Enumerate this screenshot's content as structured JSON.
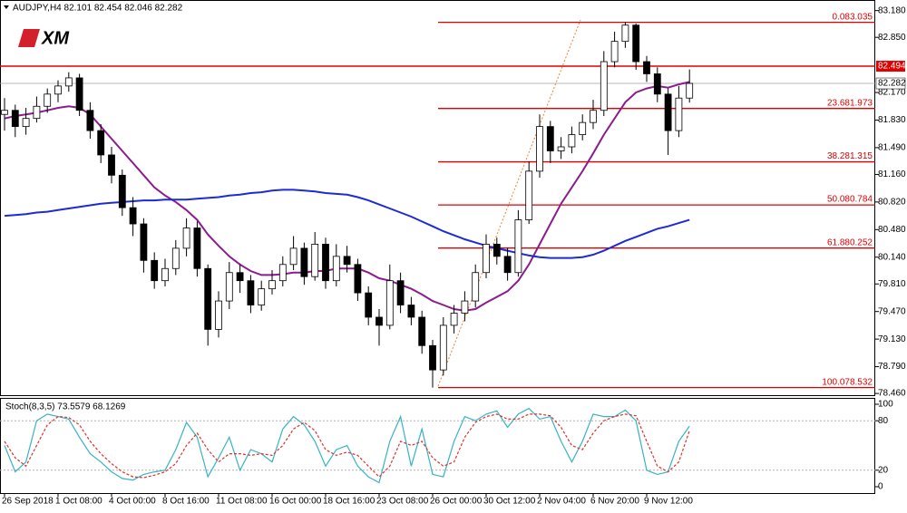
{
  "chart_data": [
    {
      "type": "candlestick",
      "title": "AUDJPY,H4 82.101 82.454 82.046 82.282",
      "logo": "XM",
      "categories": [
        "26 Sep 2018",
        null,
        null,
        null,
        null,
        "1 Oct 08:00",
        null,
        null,
        null,
        null,
        "4 Oct 00:00",
        null,
        null,
        null,
        null,
        "8 Oct 16:00",
        null,
        null,
        null,
        null,
        "11 Oct 08:00",
        null,
        null,
        null,
        null,
        "16 Oct 00:00",
        null,
        null,
        null,
        null,
        "18 Oct 16:00",
        null,
        null,
        null,
        null,
        "23 Oct 08:00",
        null,
        null,
        null,
        null,
        "26 Oct 00:00",
        null,
        null,
        null,
        null,
        "30 Oct 12:00",
        null,
        null,
        null,
        null,
        "2 Nov 04:00",
        null,
        null,
        null,
        null,
        "6 Nov 20:00",
        null,
        null,
        null,
        null,
        "9 Nov 12:00",
        null,
        null,
        null,
        null
      ],
      "open": [
        81.9,
        81.95,
        81.75,
        81.85,
        82.0,
        82.15,
        82.25,
        82.35,
        81.95,
        81.7,
        81.4,
        81.15,
        80.75,
        80.55,
        80.1,
        79.85,
        80.0,
        80.25,
        80.5,
        80.0,
        79.25,
        79.6,
        79.95,
        79.85,
        79.55,
        79.75,
        79.85,
        80.05,
        80.25,
        79.9,
        80.3,
        79.85,
        80.15,
        80.05,
        79.7,
        79.4,
        79.3,
        79.85,
        79.55,
        79.4,
        79.05,
        78.75,
        79.3,
        79.45,
        79.6,
        79.95,
        80.3,
        80.15,
        79.95,
        80.6,
        81.2,
        81.75,
        81.45,
        81.5,
        81.65,
        81.8,
        81.95,
        82.55,
        82.8,
        83.0,
        82.55,
        82.4,
        82.15,
        81.7,
        82.101
      ],
      "high": [
        82.1,
        82.02,
        81.98,
        82.12,
        82.22,
        82.32,
        82.42,
        82.4,
        82.05,
        81.78,
        81.5,
        81.22,
        80.88,
        80.62,
        80.2,
        80.12,
        80.35,
        80.62,
        80.58,
        80.05,
        79.72,
        80.08,
        80.05,
        79.92,
        79.85,
        79.98,
        80.15,
        80.4,
        80.32,
        80.45,
        80.38,
        80.3,
        80.28,
        80.12,
        79.78,
        79.5,
        80.05,
        79.95,
        79.65,
        79.48,
        79.12,
        79.4,
        79.55,
        79.72,
        80.05,
        80.42,
        80.38,
        80.25,
        80.72,
        81.32,
        81.9,
        81.82,
        81.62,
        81.75,
        81.9,
        82.08,
        82.68,
        82.92,
        83.035,
        83.02,
        82.62,
        82.48,
        82.22,
        82.25,
        82.454
      ],
      "low": [
        81.7,
        81.62,
        81.65,
        81.8,
        81.92,
        82.05,
        82.18,
        81.88,
        81.6,
        81.3,
        81.05,
        80.65,
        80.4,
        79.95,
        79.75,
        79.78,
        79.92,
        80.15,
        79.9,
        79.05,
        79.15,
        79.5,
        79.7,
        79.45,
        79.48,
        79.68,
        79.78,
        79.98,
        79.8,
        79.85,
        79.75,
        79.78,
        79.95,
        79.6,
        79.3,
        79.05,
        79.25,
        79.45,
        79.3,
        78.95,
        78.532,
        78.68,
        79.2,
        79.35,
        79.52,
        79.88,
        80.05,
        79.85,
        79.9,
        80.55,
        81.12,
        81.3,
        81.35,
        81.42,
        81.58,
        81.72,
        81.88,
        82.48,
        82.72,
        82.45,
        82.3,
        82.05,
        81.4,
        81.62,
        82.046
      ],
      "close": [
        81.95,
        81.75,
        81.85,
        82.0,
        82.15,
        82.25,
        82.35,
        81.95,
        81.7,
        81.4,
        81.15,
        80.75,
        80.55,
        80.1,
        79.85,
        80.0,
        80.25,
        80.5,
        80.0,
        79.25,
        79.6,
        79.95,
        79.85,
        79.55,
        79.75,
        79.85,
        80.05,
        80.25,
        79.9,
        80.3,
        79.85,
        80.15,
        80.05,
        79.7,
        79.4,
        79.3,
        79.85,
        79.55,
        79.4,
        79.05,
        78.75,
        79.3,
        79.45,
        79.6,
        79.95,
        80.3,
        80.15,
        79.95,
        80.6,
        81.2,
        81.75,
        81.45,
        81.5,
        81.65,
        81.8,
        81.95,
        82.55,
        82.8,
        83.0,
        82.55,
        82.4,
        82.15,
        81.7,
        82.101,
        82.282
      ],
      "up_color": "#ffffff",
      "down_color": "#000000",
      "series": [
        {
          "color": "#8e1b8e",
          "values": [
            81.85,
            81.88,
            81.9,
            81.92,
            81.95,
            81.98,
            82.0,
            81.98,
            81.9,
            81.75,
            81.6,
            81.45,
            81.3,
            81.15,
            81.0,
            80.9,
            80.82,
            80.72,
            80.6,
            80.42,
            80.28,
            80.15,
            80.05,
            79.97,
            79.92,
            79.92,
            79.93,
            79.95,
            79.95,
            79.97,
            79.97,
            80.0,
            80.0,
            80.0,
            79.95,
            79.88,
            79.85,
            79.8,
            79.75,
            79.68,
            79.6,
            79.55,
            79.5,
            79.48,
            79.5,
            79.58,
            79.65,
            79.72,
            79.85,
            80.05,
            80.3,
            80.55,
            80.8,
            81.0,
            81.2,
            81.42,
            81.65,
            81.85,
            82.05,
            82.17,
            82.22,
            82.25,
            82.23,
            82.27,
            82.3
          ]
        },
        {
          "color": "#1c2bd6",
          "values": [
            80.65,
            80.66,
            80.67,
            80.69,
            80.7,
            80.72,
            80.74,
            80.76,
            80.78,
            80.8,
            80.81,
            80.82,
            80.83,
            80.84,
            80.84,
            80.85,
            80.85,
            80.85,
            80.86,
            80.87,
            80.88,
            80.9,
            80.91,
            80.93,
            80.94,
            80.96,
            80.97,
            80.97,
            80.96,
            80.95,
            80.93,
            80.92,
            80.91,
            80.88,
            80.84,
            80.79,
            80.74,
            80.69,
            80.64,
            80.58,
            80.52,
            80.46,
            80.41,
            80.36,
            80.32,
            80.28,
            80.25,
            80.22,
            80.19,
            80.16,
            80.14,
            80.13,
            80.13,
            80.13,
            80.14,
            80.17,
            80.22,
            80.28,
            80.34,
            80.39,
            80.44,
            80.49,
            80.52,
            80.56,
            80.6
          ]
        }
      ],
      "ylim": [
        78.45,
        83.31
      ],
      "yticks": [
        {
          "value": 83.18,
          "label": "83.180"
        },
        {
          "value": 82.85,
          "label": "82.850"
        },
        {
          "value": 82.17,
          "label": "82.170"
        },
        {
          "value": 81.83,
          "label": "81.830"
        },
        {
          "value": 81.49,
          "label": "81.490"
        },
        {
          "value": 81.16,
          "label": "81.160"
        },
        {
          "value": 80.82,
          "label": "80.820"
        },
        {
          "value": 80.48,
          "label": "80.480"
        },
        {
          "value": 80.14,
          "label": "80.140"
        },
        {
          "value": 79.81,
          "label": "79.810"
        },
        {
          "value": 79.47,
          "label": "79.470"
        },
        {
          "value": 79.13,
          "label": "79.130"
        },
        {
          "value": 78.79,
          "label": "78.790"
        },
        {
          "value": 78.46,
          "label": "78.460"
        }
      ],
      "hlines": [
        {
          "value": 82.494,
          "label": "82.494",
          "color": "#e00000"
        },
        {
          "value": 82.282,
          "label": "82.282",
          "color": "#a0a0a0"
        }
      ],
      "fib_color": "#e00000",
      "fib_levels": [
        {
          "value": 83.035,
          "label": "0.083.035"
        },
        {
          "value": 81.973,
          "label": "23.681.973"
        },
        {
          "value": 81.315,
          "label": "38.281.315"
        },
        {
          "value": 80.784,
          "label": "50.080.784"
        },
        {
          "value": 80.252,
          "label": "61.880.252"
        },
        {
          "value": 78.532,
          "label": "100.078.532"
        }
      ]
    },
    {
      "type": "stochastic",
      "title": "Stoch(8,3,5) 73.5579 68.1269",
      "series": [
        {
          "color": "#36b3c4",
          "values": [
            50,
            18,
            30,
            80,
            88,
            85,
            82,
            60,
            40,
            30,
            18,
            10,
            8,
            15,
            18,
            20,
            45,
            78,
            60,
            12,
            35,
            60,
            20,
            45,
            40,
            30,
            70,
            85,
            75,
            55,
            25,
            45,
            50,
            25,
            12,
            5,
            55,
            85,
            25,
            70,
            15,
            12,
            55,
            85,
            80,
            88,
            92,
            72,
            88,
            95,
            82,
            85,
            55,
            30,
            55,
            88,
            85,
            85,
            93,
            80,
            20,
            15,
            18,
            55,
            73.5579
          ]
        },
        {
          "color": "#e0302a",
          "dashed": true,
          "values": [
            55,
            35,
            25,
            50,
            75,
            85,
            84,
            75,
            55,
            40,
            28,
            18,
            12,
            11,
            14,
            18,
            28,
            50,
            65,
            45,
            30,
            40,
            40,
            38,
            40,
            38,
            50,
            70,
            78,
            68,
            45,
            38,
            42,
            38,
            25,
            12,
            25,
            55,
            50,
            55,
            35,
            25,
            30,
            60,
            78,
            85,
            88,
            82,
            82,
            88,
            88,
            86,
            72,
            50,
            45,
            65,
            80,
            85,
            88,
            86,
            55,
            25,
            18,
            30,
            68.1269
          ]
        }
      ],
      "ylim": [
        0,
        100
      ],
      "yticks": [
        100,
        80,
        20,
        0
      ],
      "levels": [
        80,
        20
      ]
    }
  ]
}
